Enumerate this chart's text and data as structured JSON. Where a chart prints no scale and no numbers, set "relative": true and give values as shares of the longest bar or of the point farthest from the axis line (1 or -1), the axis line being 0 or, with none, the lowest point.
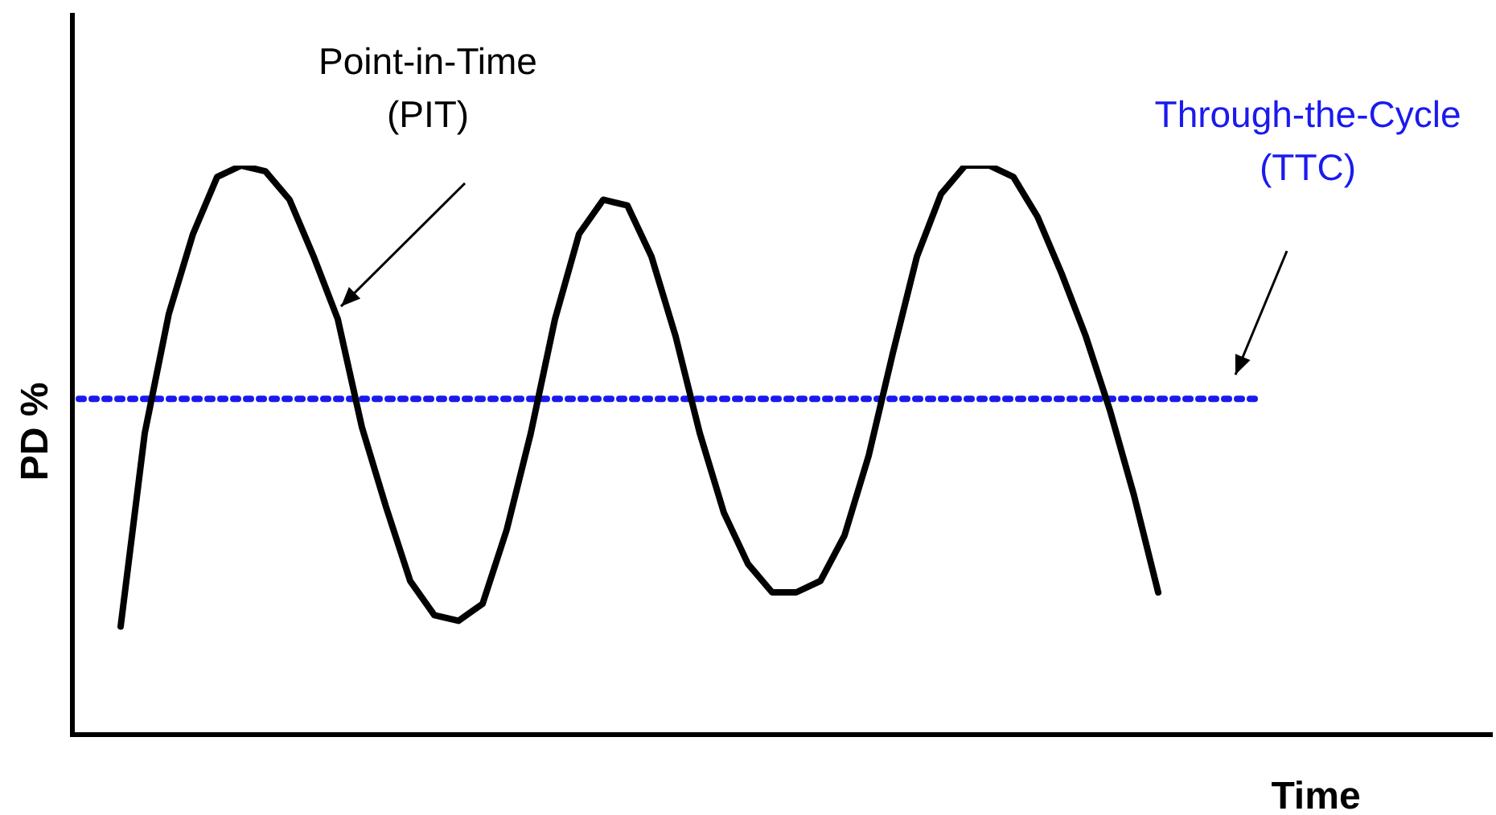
{
  "chart_data": {
    "type": "line",
    "relative": true,
    "xlabel": "Time",
    "ylabel": "PD %",
    "legend": false,
    "marker": "none",
    "annotations": [
      "Point-in-Time\n(PIT)"
    ],
    "categories": [
      null,
      null,
      null,
      null,
      null,
      null,
      null,
      null,
      null,
      null,
      null,
      null,
      null,
      null,
      null,
      null,
      null,
      null,
      null,
      null,
      null,
      null,
      null,
      null,
      null,
      null,
      null,
      null,
      null,
      null,
      null,
      null,
      null,
      null,
      null,
      null,
      null,
      null,
      null,
      null,
      null,
      null,
      null,
      null,
      null,
      null,
      null,
      null,
      null,
      null,
      null
    ],
    "series": [
      {
        "color": "#000000",
        "line_style": "solid",
        "values": [
          null,
          null,
          0.19,
          0.53,
          0.74,
          0.88,
          0.98,
          1,
          0.99,
          0.94,
          0.84,
          0.73,
          0.54,
          0.4,
          0.27,
          0.21,
          0.2,
          0.23,
          0.36,
          0.53,
          0.73,
          0.88,
          0.94,
          0.93,
          0.84,
          0.7,
          0.53,
          0.39,
          0.3,
          0.25,
          0.25,
          0.27,
          0.35,
          0.49,
          0.67,
          0.84,
          0.95,
          1,
          1,
          0.98,
          0.91,
          0.81,
          0.7,
          0.57,
          0.42,
          0.25,
          null,
          null,
          null,
          null,
          null
        ]
      }
    ],
    "ref_lines": [
      {
        "axis": "y",
        "value": 0.59,
        "label": "Through-the-Cycle\n(TTC)",
        "color": "#1a1aee",
        "line_style": "dotted"
      }
    ]
  }
}
